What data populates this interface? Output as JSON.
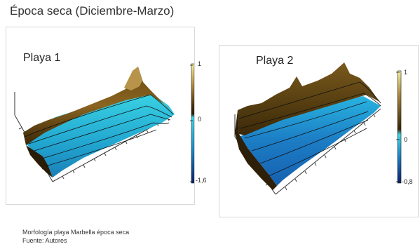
{
  "page": {
    "title": "Época seca (Diciembre-Marzo)",
    "caption_line1": "Morfología playa Marbella época seca",
    "caption_line2": "Fuente: Autores"
  },
  "chart_data": [
    {
      "type": "surface",
      "title": "Playa 1",
      "colorbar": {
        "ticks": [
          "1",
          "0",
          "-1,6"
        ],
        "min": -1.6,
        "max": 1
      },
      "colors": {
        "high": "#f3ef9a",
        "mid": "#4a3008",
        "low_start": "#3dd6e6",
        "low": "#0a2f8a"
      }
    },
    {
      "type": "surface",
      "title": "Playa 2",
      "colorbar": {
        "ticks": [
          "1",
          "0",
          "-0,8"
        ],
        "min": -0.8,
        "max": 1
      },
      "colors": {
        "high": "#f3ef9a",
        "mid": "#4a3008",
        "low_start": "#3dd6e6",
        "low": "#0a2f8a"
      }
    }
  ]
}
